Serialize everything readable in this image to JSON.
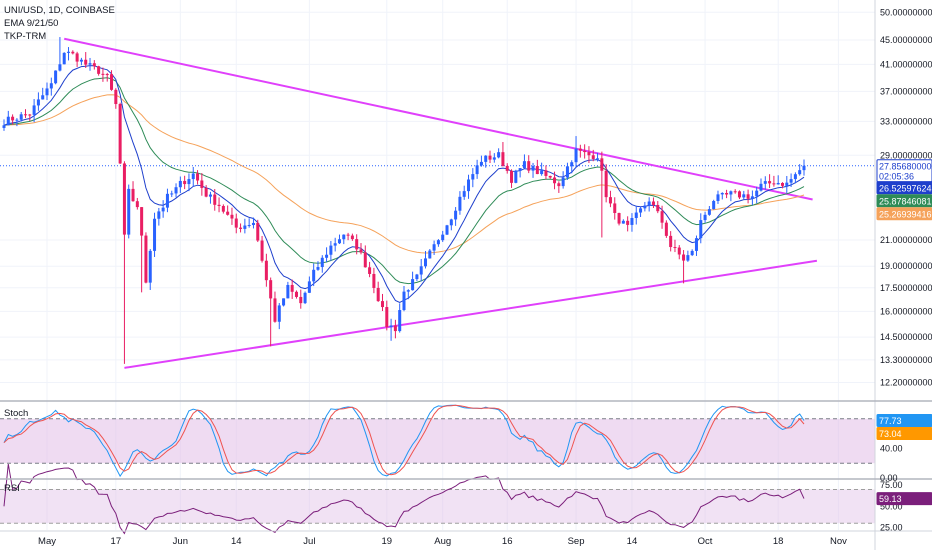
{
  "header": {
    "title": "UNI/USD, 1D, COINBASE",
    "indicator1": "EMA 9/21/50",
    "indicator2": "TKP-TRM"
  },
  "colors": {
    "up": "#2962ff",
    "down": "#e91e63",
    "ema9": "#1e3fcc",
    "ema21": "#2e8b57",
    "ema50": "#f5a25a",
    "trendline": "#e040fb",
    "stoch_k": "#2196f3",
    "stoch_d": "#ef5350",
    "rsi": "#7b1f7b",
    "band": "#e1bee7"
  },
  "chart_data": [
    {
      "type": "candlestick",
      "name": "price",
      "yscale": "log",
      "ylim": [
        11.5,
        52
      ],
      "x_start": "2021-04-21",
      "x_end": "2021-10-24",
      "x_ticks": [
        {
          "date": "2021-05-01",
          "label": "May"
        },
        {
          "date": "2021-05-17",
          "label": "17"
        },
        {
          "date": "2021-06-01",
          "label": "Jun"
        },
        {
          "date": "2021-06-14",
          "label": "14"
        },
        {
          "date": "2021-07-01",
          "label": "Jul"
        },
        {
          "date": "2021-07-19",
          "label": "19"
        },
        {
          "date": "2021-08-01",
          "label": "Aug"
        },
        {
          "date": "2021-08-16",
          "label": "16"
        },
        {
          "date": "2021-09-01",
          "label": "Sep"
        },
        {
          "date": "2021-09-14",
          "label": "14"
        },
        {
          "date": "2021-10-01",
          "label": "Oct"
        },
        {
          "date": "2021-10-18",
          "label": "18"
        },
        {
          "date": "2021-11-01",
          "label": "Nov"
        }
      ],
      "y_ticks": [
        {
          "value": 50,
          "label": "50.00000000"
        },
        {
          "value": 45,
          "label": "45.00000000"
        },
        {
          "value": 41,
          "label": "41.00000000"
        },
        {
          "value": 37,
          "label": "37.00000000"
        },
        {
          "value": 33,
          "label": "33.00000000"
        },
        {
          "value": 29,
          "label": "29.00000000"
        },
        {
          "value": 21,
          "label": "21.00000000"
        },
        {
          "value": 19,
          "label": "19.00000000"
        },
        {
          "value": 17.5,
          "label": "17.50000000"
        },
        {
          "value": 16,
          "label": "16.00000000"
        },
        {
          "value": 14.5,
          "label": "14.50000000"
        },
        {
          "value": 13.3,
          "label": "13.30000000"
        },
        {
          "value": 12.2,
          "label": "12.20000000"
        }
      ],
      "price_labels": [
        {
          "value": 27.8568,
          "text": "27.85680000",
          "time": "02:05:36",
          "bg": "#ffffff",
          "fg": "#1e3fcc",
          "border": "#1e3fcc"
        },
        {
          "value": 26.52597624,
          "text": "26.52597624",
          "bg": "#1e3fcc",
          "fg": "#ffffff"
        },
        {
          "value": 25.87846081,
          "text": "25.87846081",
          "bg": "#2e8b57",
          "fg": "#ffffff"
        },
        {
          "value": 25.26939416,
          "text": "25.26939416",
          "bg": "#f5a25a",
          "fg": "#ffffff"
        }
      ],
      "trendlines": [
        {
          "from": [
            "2021-05-05",
            45.2
          ],
          "to": [
            "2021-10-26",
            24.5
          ]
        },
        {
          "from": [
            "2021-05-19",
            12.9
          ],
          "to": [
            "2021-10-27",
            19.4
          ]
        }
      ],
      "anchors": [
        [
          "2021-04-21",
          33
        ],
        [
          "2021-04-27",
          34
        ],
        [
          "2021-05-02",
          38
        ],
        [
          "2021-05-05",
          43
        ],
        [
          "2021-05-07",
          42.5
        ],
        [
          "2021-05-10",
          41
        ],
        [
          "2021-05-13",
          40
        ],
        [
          "2021-05-15",
          39
        ],
        [
          "2021-05-17",
          35
        ],
        [
          "2021-05-19",
          21
        ],
        [
          "2021-05-20",
          25
        ],
        [
          "2021-05-22",
          24
        ],
        [
          "2021-05-24",
          18
        ],
        [
          "2021-05-26",
          23
        ],
        [
          "2021-05-28",
          24
        ],
        [
          "2021-06-01",
          26
        ],
        [
          "2021-06-04",
          27
        ],
        [
          "2021-06-07",
          25
        ],
        [
          "2021-06-10",
          24
        ],
        [
          "2021-06-14",
          22
        ],
        [
          "2021-06-18",
          22.5
        ],
        [
          "2021-06-21",
          18
        ],
        [
          "2021-06-23",
          15.5
        ],
        [
          "2021-06-26",
          17.5
        ],
        [
          "2021-06-29",
          16.5
        ],
        [
          "2021-07-02",
          18.5
        ],
        [
          "2021-07-06",
          20.5
        ],
        [
          "2021-07-09",
          21.5
        ],
        [
          "2021-07-12",
          20.5
        ],
        [
          "2021-07-15",
          18.5
        ],
        [
          "2021-07-19",
          15.2
        ],
        [
          "2021-07-21",
          15
        ],
        [
          "2021-07-23",
          17.2
        ],
        [
          "2021-07-26",
          18.2
        ],
        [
          "2021-07-30",
          20.5
        ],
        [
          "2021-08-03",
          23
        ],
        [
          "2021-08-06",
          25.5
        ],
        [
          "2021-08-10",
          28.5
        ],
        [
          "2021-08-14",
          29
        ],
        [
          "2021-08-17",
          26.5
        ],
        [
          "2021-08-20",
          28
        ],
        [
          "2021-08-24",
          27
        ],
        [
          "2021-08-28",
          26
        ],
        [
          "2021-09-01",
          29.5
        ],
        [
          "2021-09-04",
          29
        ],
        [
          "2021-09-06",
          29
        ],
        [
          "2021-09-08",
          25
        ],
        [
          "2021-09-10",
          23
        ],
        [
          "2021-09-13",
          22
        ],
        [
          "2021-09-16",
          23.5
        ],
        [
          "2021-09-18",
          24.5
        ],
        [
          "2021-09-21",
          22.5
        ],
        [
          "2021-09-23",
          20.5
        ],
        [
          "2021-09-26",
          19.5
        ],
        [
          "2021-09-28",
          20
        ],
        [
          "2021-09-30",
          22.5
        ],
        [
          "2021-10-03",
          24.5
        ],
        [
          "2021-10-07",
          25
        ],
        [
          "2021-10-12",
          24.8
        ],
        [
          "2021-10-14",
          25.8
        ],
        [
          "2021-10-17",
          26.2
        ],
        [
          "2021-10-20",
          26
        ],
        [
          "2021-10-24",
          27.86
        ]
      ]
    },
    {
      "type": "line",
      "name": "Stoch",
      "ylim": [
        0,
        100
      ],
      "y_ticks": [
        {
          "value": 40,
          "label": "40.00"
        },
        {
          "value": 0,
          "label": "0.00"
        }
      ],
      "band": [
        20,
        80
      ],
      "last_k": 77.73,
      "last_k_text": "77.73",
      "last_d": 73.04,
      "last_d_text": "73.04"
    },
    {
      "type": "line",
      "name": "RSI",
      "ylim": [
        22,
        80
      ],
      "y_ticks": [
        {
          "value": 75,
          "label": "75.00"
        },
        {
          "value": 50,
          "label": "50.00"
        },
        {
          "value": 25,
          "label": "25.00"
        }
      ],
      "band": [
        30,
        70
      ],
      "last": 59.13,
      "last_text": "59.13"
    }
  ]
}
